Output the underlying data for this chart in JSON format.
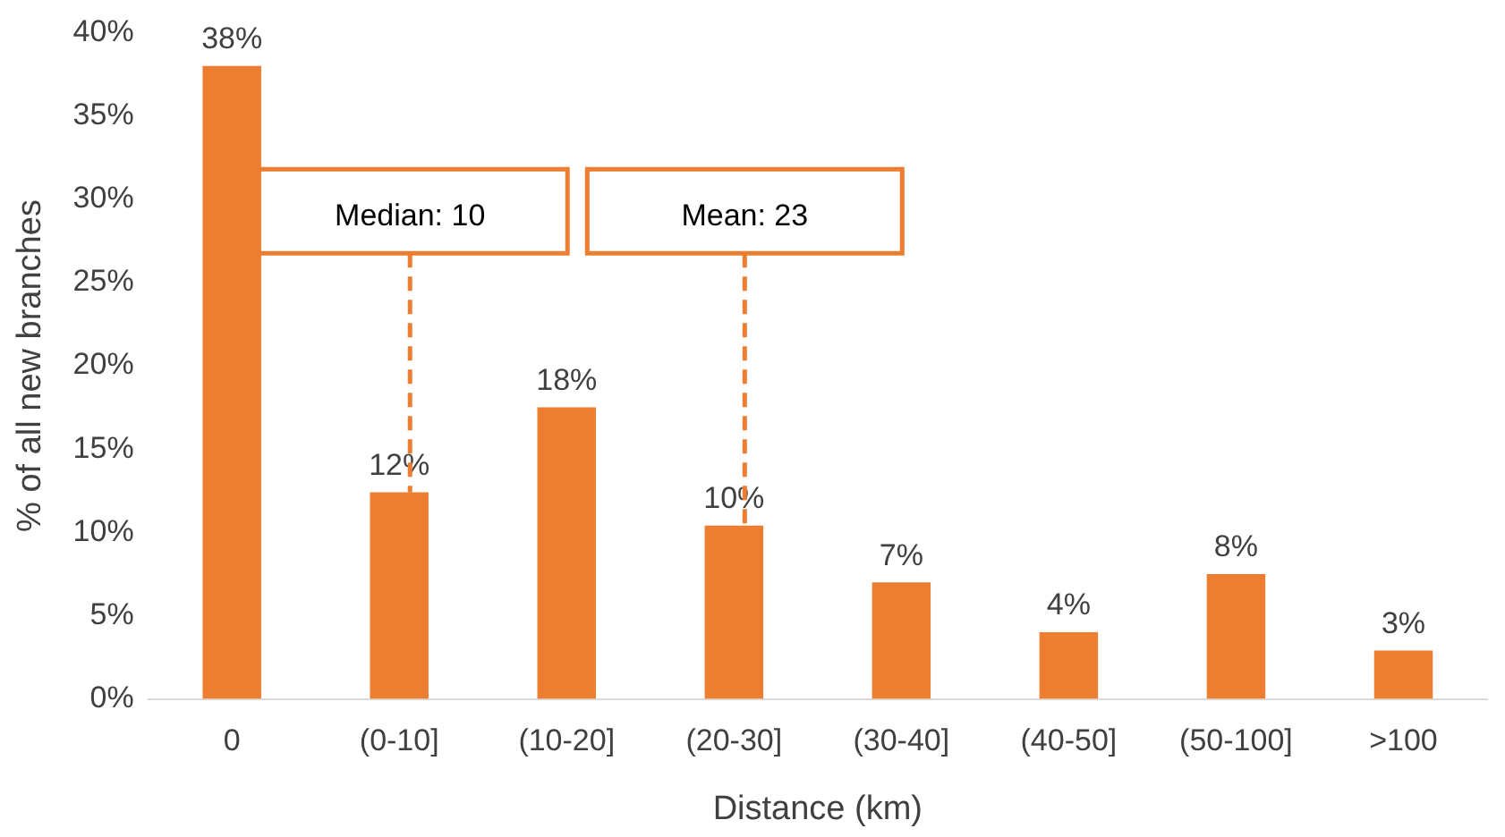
{
  "chart_data": {
    "type": "bar",
    "xlabel": "Distance (km)",
    "ylabel": "% of all new branches",
    "categories": [
      "0",
      "(0-10]",
      "(10-20]",
      "(20-30]",
      "(30-40]",
      "(40-50]",
      "(50-100]",
      ">100"
    ],
    "values": [
      38,
      12.4,
      17.5,
      10.4,
      7,
      4,
      7.5,
      2.9
    ],
    "value_labels": [
      "38%",
      "12%",
      "18%",
      "10%",
      "7%",
      "4%",
      "8%",
      "3%"
    ],
    "color": "#ed7d31",
    "ylim": [
      0,
      40
    ],
    "yticks": [
      {
        "value": 0,
        "label": "0%"
      },
      {
        "value": 5,
        "label": "5%"
      },
      {
        "value": 10,
        "label": "10%"
      },
      {
        "value": 15,
        "label": "15%"
      },
      {
        "value": 20,
        "label": "20%"
      },
      {
        "value": 25,
        "label": "25%"
      },
      {
        "value": 30,
        "label": "30%"
      },
      {
        "value": 35,
        "label": "35%"
      },
      {
        "value": 40,
        "label": "40%"
      }
    ],
    "annotations": [
      {
        "text": "Median: 10",
        "x": "(0-10]",
        "y": 12.4
      },
      {
        "text": "Mean: 23",
        "x": "(20-30]",
        "y": 10.4
      }
    ],
    "grid": false,
    "legend": false
  }
}
